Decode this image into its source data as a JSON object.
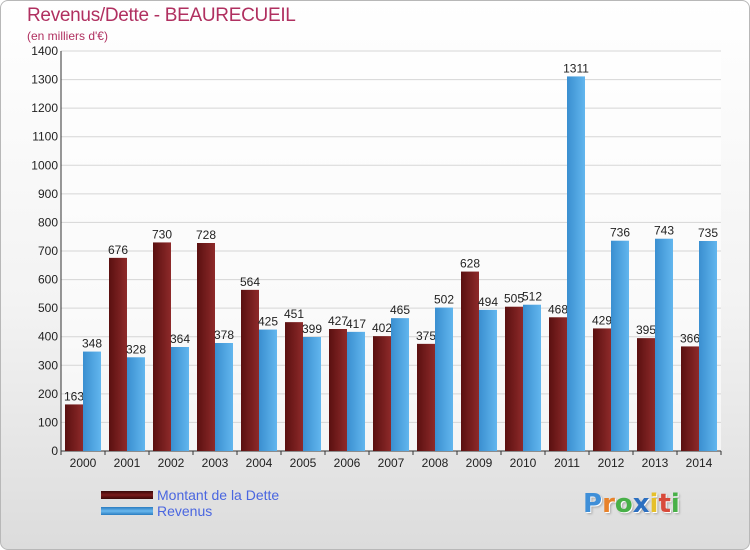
{
  "chart_data": {
    "type": "bar",
    "title": "Revenus/Dette - BEAURECUEIL",
    "subtitle": "(en milliers d'€)",
    "categories": [
      "2000",
      "2001",
      "2002",
      "2003",
      "2004",
      "2005",
      "2006",
      "2007",
      "2008",
      "2009",
      "2010",
      "2011",
      "2012",
      "2013",
      "2014"
    ],
    "series": [
      {
        "name": "Montant de la Dette",
        "color": "#7a1c1c",
        "values": [
          163,
          676,
          730,
          728,
          564,
          451,
          427,
          402,
          375,
          628,
          505,
          468,
          429,
          395,
          366
        ]
      },
      {
        "name": "Revenus",
        "color": "#4aa3e0",
        "values": [
          348,
          328,
          364,
          378,
          425,
          399,
          417,
          465,
          502,
          494,
          512,
          1311,
          736,
          743,
          735
        ]
      }
    ],
    "ylim": [
      0,
      1400
    ],
    "yticks": [
      0,
      100,
      200,
      300,
      400,
      500,
      600,
      700,
      800,
      900,
      1000,
      1100,
      1200,
      1300,
      1400
    ],
    "grid": true,
    "legend_position": "bottom-left"
  },
  "brand": {
    "letters": [
      "P",
      "r",
      "o",
      "x",
      "i",
      "t",
      "i"
    ],
    "colors": [
      "#3f8fd8",
      "#e8822a",
      "#48b048",
      "#2c6fc0",
      "#e6c02a",
      "#d84a3a",
      "#48b048"
    ]
  }
}
